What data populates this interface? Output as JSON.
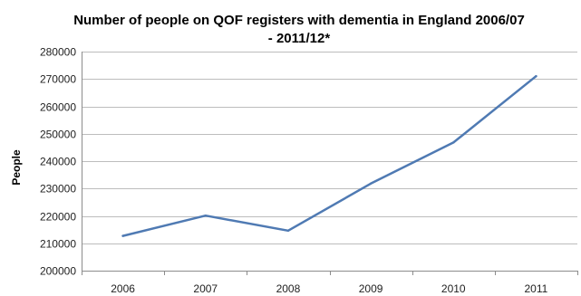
{
  "chart_data": {
    "type": "line",
    "title_lines": [
      "Number of people on QOF  registers with dementia in England 2006/07",
      "- 2011/12*"
    ],
    "xlabel": "",
    "ylabel": "People",
    "categories": [
      "2006",
      "2007",
      "2008",
      "2009",
      "2010",
      "2011"
    ],
    "series": [
      {
        "values": [
          212700,
          220100,
          214600,
          231800,
          246800,
          271000
        ]
      }
    ],
    "ylim": [
      200000,
      280000
    ],
    "yticks": [
      "200000",
      "210000",
      "220000",
      "230000",
      "240000",
      "250000",
      "260000",
      "270000",
      "280000"
    ],
    "grid": true,
    "legend": "none",
    "line_color": "#4f7ab3"
  }
}
